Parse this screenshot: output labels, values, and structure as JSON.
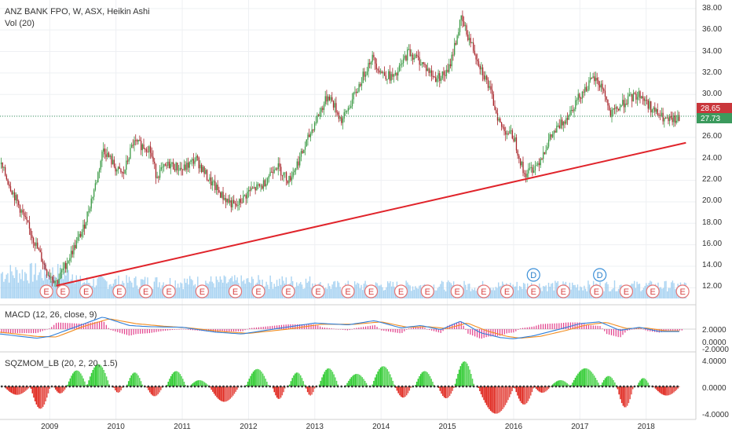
{
  "header": {
    "symbol_line": "ANZ BANK FPO, W, ASX, Heikin Ashi",
    "volume_label": "Vol (20)"
  },
  "price_panel": {
    "y_ticks": [
      "38.00",
      "36.00",
      "34.00",
      "32.00",
      "30.00",
      "28.00",
      "26.00",
      "24.00",
      "22.00",
      "20.00",
      "18.00",
      "16.00",
      "14.00",
      "12.00"
    ],
    "badge_high": "28.65",
    "badge_last": "27.73"
  },
  "macd_panel": {
    "title": "MACD (12, 26, close, 9)",
    "y_ticks": [
      "2.0000",
      "0.0000",
      "-2.0000"
    ]
  },
  "sqz_panel": {
    "title": "SQZMOM_LB (20, 2, 20, 1.5)",
    "y_ticks": [
      "4.0000",
      "0.0000",
      "-4.0000"
    ]
  },
  "x_axis": {
    "ticks": [
      "2009",
      "2010",
      "2011",
      "2012",
      "2013",
      "2014",
      "2015",
      "2016",
      "2017",
      "2018"
    ]
  },
  "events": {
    "earnings_letter": "E",
    "dividend_letter": "D"
  },
  "colors": {
    "up": "#3c9a46",
    "down": "#a8242a",
    "volume": "#8ec5ee",
    "trendline": "#e0242b",
    "macd_line": "#2f7fd9",
    "signal_line": "#f28d20",
    "macd_hist": "#e23d8a",
    "sqz_pos": "#2ecb30",
    "sqz_neg": "#e0281f",
    "badge_high": "#c9363b",
    "badge_last": "#3b9a5d"
  },
  "chart_data": {
    "type": "candlestick",
    "title": "ANZ BANK FPO, W, ASX, Heikin Ashi",
    "ylim": [
      11,
      38.5
    ],
    "x_range": [
      2008.25,
      2018.75
    ],
    "price_path": [
      [
        2008.25,
        23.5
      ],
      [
        2008.5,
        20.0
      ],
      [
        2008.75,
        16.5
      ],
      [
        2008.95,
        13.5
      ],
      [
        2009.1,
        12.5
      ],
      [
        2009.3,
        15.0
      ],
      [
        2009.5,
        17.5
      ],
      [
        2009.7,
        22.0
      ],
      [
        2009.8,
        25.0
      ],
      [
        2010.0,
        23.0
      ],
      [
        2010.1,
        22.5
      ],
      [
        2010.25,
        25.5
      ],
      [
        2010.5,
        25.0
      ],
      [
        2010.6,
        22.5
      ],
      [
        2010.8,
        23.5
      ],
      [
        2011.0,
        23.0
      ],
      [
        2011.2,
        24.0
      ],
      [
        2011.4,
        22.0
      ],
      [
        2011.6,
        20.5
      ],
      [
        2011.8,
        19.5
      ],
      [
        2012.0,
        21.0
      ],
      [
        2012.2,
        21.5
      ],
      [
        2012.4,
        23.5
      ],
      [
        2012.6,
        22.0
      ],
      [
        2012.8,
        24.5
      ],
      [
        2013.0,
        27.5
      ],
      [
        2013.2,
        30.0
      ],
      [
        2013.4,
        27.5
      ],
      [
        2013.6,
        30.0
      ],
      [
        2013.85,
        33.5
      ],
      [
        2014.0,
        32.0
      ],
      [
        2014.2,
        31.5
      ],
      [
        2014.4,
        34.0
      ],
      [
        2014.6,
        33.0
      ],
      [
        2014.8,
        31.5
      ],
      [
        2015.0,
        32.0
      ],
      [
        2015.2,
        37.0
      ],
      [
        2015.4,
        34.0
      ],
      [
        2015.6,
        31.0
      ],
      [
        2015.8,
        27.0
      ],
      [
        2016.0,
        26.0
      ],
      [
        2016.15,
        22.5
      ],
      [
        2016.35,
        23.5
      ],
      [
        2016.55,
        26.0
      ],
      [
        2016.8,
        28.0
      ],
      [
        2017.0,
        30.0
      ],
      [
        2017.2,
        31.5
      ],
      [
        2017.35,
        30.5
      ],
      [
        2017.45,
        28.0
      ],
      [
        2017.7,
        29.5
      ],
      [
        2017.9,
        30.0
      ],
      [
        2018.1,
        28.5
      ],
      [
        2018.3,
        27.5
      ],
      [
        2018.5,
        27.7
      ]
    ],
    "trendline": [
      [
        2009.1,
        12.2
      ],
      [
        2018.6,
        25.5
      ]
    ],
    "macd": {
      "ylim": [
        -3.5,
        3.5
      ],
      "macd_path": [
        [
          2008.25,
          -0.8
        ],
        [
          2008.8,
          -1.5
        ],
        [
          2009.0,
          -1.2
        ],
        [
          2009.5,
          0.8
        ],
        [
          2009.8,
          2.0
        ],
        [
          2010.2,
          0.6
        ],
        [
          2010.5,
          0.4
        ],
        [
          2011.0,
          0.3
        ],
        [
          2011.5,
          -0.5
        ],
        [
          2011.9,
          -0.8
        ],
        [
          2012.5,
          0.2
        ],
        [
          2013.0,
          1.0
        ],
        [
          2013.5,
          0.7
        ],
        [
          2013.9,
          1.4
        ],
        [
          2014.3,
          0.2
        ],
        [
          2014.6,
          0.6
        ],
        [
          2014.9,
          -0.1
        ],
        [
          2015.2,
          1.3
        ],
        [
          2015.5,
          -0.6
        ],
        [
          2015.8,
          -1.4
        ],
        [
          2016.0,
          -1.6
        ],
        [
          2016.3,
          -1.1
        ],
        [
          2016.7,
          0.0
        ],
        [
          2017.0,
          0.9
        ],
        [
          2017.3,
          1.2
        ],
        [
          2017.6,
          -0.2
        ],
        [
          2017.9,
          0.3
        ],
        [
          2018.2,
          -0.4
        ],
        [
          2018.5,
          -0.4
        ]
      ],
      "signal_path": [
        [
          2008.25,
          -0.5
        ],
        [
          2008.8,
          -1.2
        ],
        [
          2009.1,
          -1.3
        ],
        [
          2009.5,
          0.4
        ],
        [
          2009.9,
          1.7
        ],
        [
          2010.3,
          0.9
        ],
        [
          2010.7,
          0.5
        ],
        [
          2011.1,
          0.2
        ],
        [
          2011.6,
          -0.4
        ],
        [
          2012.0,
          -0.7
        ],
        [
          2012.6,
          0.0
        ],
        [
          2013.1,
          0.8
        ],
        [
          2013.6,
          0.8
        ],
        [
          2014.0,
          1.2
        ],
        [
          2014.4,
          0.3
        ],
        [
          2014.7,
          0.4
        ],
        [
          2015.0,
          0.1
        ],
        [
          2015.3,
          1.0
        ],
        [
          2015.6,
          -0.3
        ],
        [
          2015.9,
          -1.2
        ],
        [
          2016.1,
          -1.5
        ],
        [
          2016.4,
          -1.2
        ],
        [
          2016.8,
          -0.2
        ],
        [
          2017.1,
          0.7
        ],
        [
          2017.4,
          1.1
        ],
        [
          2017.7,
          0.1
        ],
        [
          2018.0,
          0.2
        ],
        [
          2018.3,
          -0.3
        ],
        [
          2018.5,
          -0.3
        ]
      ]
    },
    "sqzmom": {
      "ylim": [
        -4.5,
        4.5
      ],
      "lobes": [
        [
          2008.3,
          2008.7,
          -1.2
        ],
        [
          2008.7,
          2009.0,
          -3.2
        ],
        [
          2009.05,
          2009.25,
          -1.0
        ],
        [
          2009.25,
          2009.55,
          2.3
        ],
        [
          2009.55,
          2009.9,
          3.2
        ],
        [
          2009.95,
          2010.1,
          -0.9
        ],
        [
          2010.15,
          2010.4,
          2.0
        ],
        [
          2010.45,
          2010.7,
          -1.4
        ],
        [
          2010.75,
          2011.05,
          2.2
        ],
        [
          2011.1,
          2011.4,
          0.9
        ],
        [
          2011.4,
          2011.85,
          -2.2
        ],
        [
          2011.95,
          2012.3,
          2.5
        ],
        [
          2012.35,
          2012.55,
          -1.8
        ],
        [
          2012.6,
          2012.85,
          2.0
        ],
        [
          2012.85,
          2013.0,
          -1.3
        ],
        [
          2013.05,
          2013.35,
          2.6
        ],
        [
          2013.45,
          2013.8,
          1.8
        ],
        [
          2013.85,
          2014.2,
          2.9
        ],
        [
          2014.2,
          2014.45,
          -1.6
        ],
        [
          2014.5,
          2014.8,
          2.2
        ],
        [
          2014.85,
          2015.1,
          -1.7
        ],
        [
          2015.1,
          2015.4,
          3.6
        ],
        [
          2015.45,
          2016.0,
          -3.9
        ],
        [
          2016.0,
          2016.3,
          -2.6
        ],
        [
          2016.3,
          2016.55,
          -0.9
        ],
        [
          2016.55,
          2016.85,
          0.9
        ],
        [
          2016.85,
          2017.3,
          2.6
        ],
        [
          2017.3,
          2017.55,
          1.5
        ],
        [
          2017.55,
          2017.8,
          -3.0
        ],
        [
          2017.85,
          2018.05,
          1.2
        ],
        [
          2018.1,
          2018.5,
          -1.3
        ]
      ]
    },
    "x_ticks": [
      2009,
      2010,
      2011,
      2012,
      2013,
      2014,
      2015,
      2016,
      2017,
      2018
    ],
    "earnings_markers": [
      2008.95,
      2009.2,
      2009.55,
      2010.05,
      2010.45,
      2010.8,
      2011.3,
      2011.8,
      2012.15,
      2012.6,
      2013.05,
      2013.5,
      2013.85,
      2014.3,
      2014.7,
      2015.15,
      2015.55,
      2015.9,
      2016.3,
      2016.75,
      2017.25,
      2017.7,
      2018.1,
      2018.55
    ],
    "dividend_markers": [
      2016.3,
      2017.3
    ]
  }
}
